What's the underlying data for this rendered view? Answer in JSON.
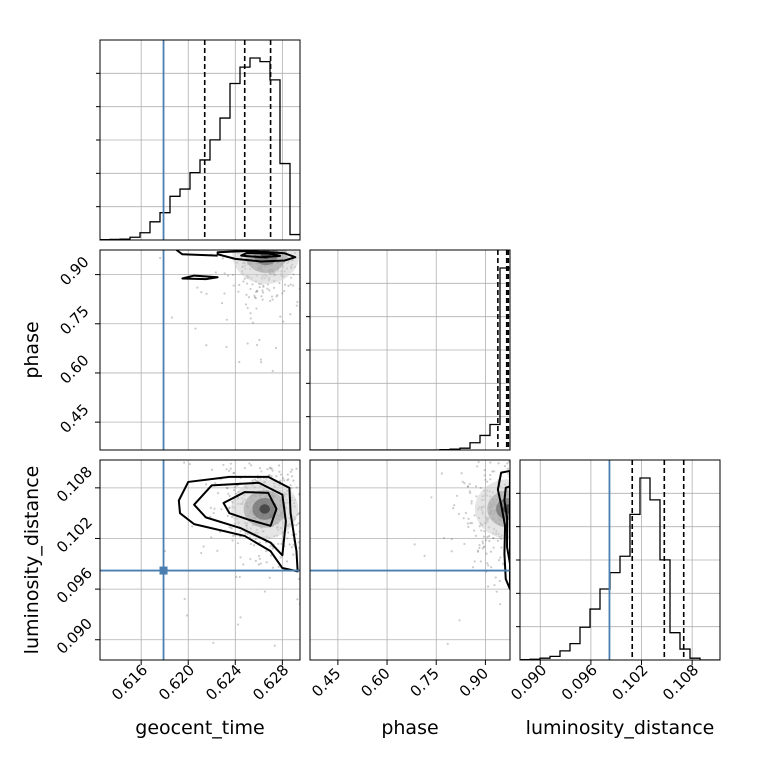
{
  "chart_data": {
    "type": "corner",
    "parameters": [
      "geocent_time",
      "phase",
      "luminosity_distance"
    ],
    "labels": {
      "geocent_time": "geocent_time",
      "phase": "phase",
      "luminosity_distance": "luminosity_distance"
    },
    "ranges": {
      "geocent_time": [
        0.6125,
        0.6295
      ],
      "phase": [
        0.365,
        0.975
      ],
      "luminosity_distance": [
        0.0876,
        0.1113
      ]
    },
    "ticks": {
      "geocent_time": [
        "0.616",
        "0.620",
        "0.624",
        "0.628"
      ],
      "phase": [
        "0.45",
        "0.60",
        "0.75",
        "0.90"
      ],
      "luminosity_distance": [
        "0.090",
        "0.096",
        "0.102",
        "0.108"
      ]
    },
    "truths": {
      "geocent_time": 0.6179,
      "phase": null,
      "luminosity_distance": 0.0982
    },
    "quantiles": {
      "geocent_time": [
        0.6214,
        0.6248,
        0.627
      ],
      "phase": [
        0.938,
        0.965,
        0.97
      ],
      "luminosity_distance": [
        0.1009,
        0.1047,
        0.107
      ]
    },
    "histograms": {
      "geocent_time": {
        "bins": [
          0.6125,
          0.6295
        ],
        "counts": [
          0.002,
          0.003,
          0.005,
          0.015,
          0.04,
          0.1,
          0.15,
          0.24,
          0.28,
          0.37,
          0.44,
          0.55,
          0.67,
          0.86,
          0.95,
          1.0,
          0.98,
          0.88,
          0.42,
          0.03
        ]
      },
      "phase": {
        "bins": [
          0.365,
          0.975
        ],
        "counts": [
          0,
          0,
          0,
          0,
          0,
          0,
          0,
          0,
          0,
          0,
          0,
          0,
          0,
          0.002,
          0.005,
          0.01,
          0.04,
          0.08,
          0.14,
          1.0
        ]
      },
      "luminosity_distance": {
        "bins": [
          0.0876,
          0.1113
        ],
        "counts": [
          0.002,
          0.004,
          0.01,
          0.02,
          0.05,
          0.09,
          0.18,
          0.28,
          0.39,
          0.48,
          0.57,
          0.8,
          1.0,
          0.88,
          0.55,
          0.15,
          0.06,
          0.01,
          0,
          0
        ]
      }
    },
    "contours_2d": {
      "phase_vs_geocent_time": {
        "outer": [
          [
            0.6225,
            0.962
          ],
          [
            0.624,
            0.948
          ],
          [
            0.6262,
            0.94
          ],
          [
            0.6282,
            0.943
          ],
          [
            0.6291,
            0.953
          ],
          [
            0.6282,
            0.965
          ],
          [
            0.625,
            0.972
          ],
          [
            0.6225,
            0.968
          ]
        ],
        "inner": [
          [
            0.6245,
            0.958
          ],
          [
            0.6262,
            0.953
          ],
          [
            0.6278,
            0.957
          ],
          [
            0.6268,
            0.965
          ],
          [
            0.625,
            0.966
          ]
        ],
        "peak": [
          0.6266,
          0.962
        ],
        "secondary": [
          [
            0.6195,
            0.888
          ],
          [
            0.6215,
            0.886
          ],
          [
            0.6225,
            0.892
          ],
          [
            0.6205,
            0.897
          ]
        ],
        "band_edge": [
          [
            0.619,
            0.975
          ],
          [
            0.6195,
            0.962
          ],
          [
            0.6225,
            0.958
          ]
        ]
      },
      "luminosity_distance_vs_geocent_time": {
        "level1": [
          [
            0.6192,
            0.1065
          ],
          [
            0.62,
            0.1087
          ],
          [
            0.6235,
            0.1093
          ],
          [
            0.6268,
            0.1093
          ],
          [
            0.6286,
            0.108
          ],
          [
            0.6287,
            0.105
          ],
          [
            0.6292,
            0.1005
          ],
          [
            0.6293,
            0.0981
          ],
          [
            0.628,
            0.0985
          ],
          [
            0.627,
            0.1005
          ],
          [
            0.6248,
            0.1023
          ],
          [
            0.6205,
            0.1037
          ],
          [
            0.6193,
            0.105
          ]
        ],
        "level2": [
          [
            0.6205,
            0.106
          ],
          [
            0.622,
            0.1083
          ],
          [
            0.626,
            0.1086
          ],
          [
            0.628,
            0.1072
          ],
          [
            0.6283,
            0.104
          ],
          [
            0.628,
            0.1
          ],
          [
            0.627,
            0.1015
          ],
          [
            0.6245,
            0.1032
          ],
          [
            0.6215,
            0.1045
          ]
        ],
        "level3": [
          [
            0.623,
            0.1062
          ],
          [
            0.6248,
            0.1075
          ],
          [
            0.6268,
            0.1074
          ],
          [
            0.6275,
            0.1055
          ],
          [
            0.627,
            0.1035
          ],
          [
            0.6252,
            0.1042
          ],
          [
            0.6235,
            0.105
          ]
        ],
        "peak": [
          0.6265,
          0.1055
        ]
      },
      "luminosity_distance_vs_phase": {
        "outer": [
          [
            0.948,
            0.1098
          ],
          [
            0.975,
            0.11
          ],
          [
            0.975,
            0.096
          ],
          [
            0.962,
            0.0972
          ],
          [
            0.958,
            0.1002
          ],
          [
            0.96,
            0.1035
          ],
          [
            0.948,
            0.106
          ],
          [
            0.938,
            0.1078
          ]
        ],
        "inner": [
          [
            0.962,
            0.108
          ],
          [
            0.975,
            0.1082
          ],
          [
            0.975,
            0.099
          ],
          [
            0.966,
            0.101
          ],
          [
            0.966,
            0.1045
          ],
          [
            0.958,
            0.1065
          ]
        ],
        "peak": [
          0.97,
          0.1055
        ]
      }
    }
  },
  "colors": {
    "truth_line": "#4a7fb0",
    "contour": "#000000",
    "grid": "#b0b0b0",
    "scatter": "#8c8c8c"
  }
}
